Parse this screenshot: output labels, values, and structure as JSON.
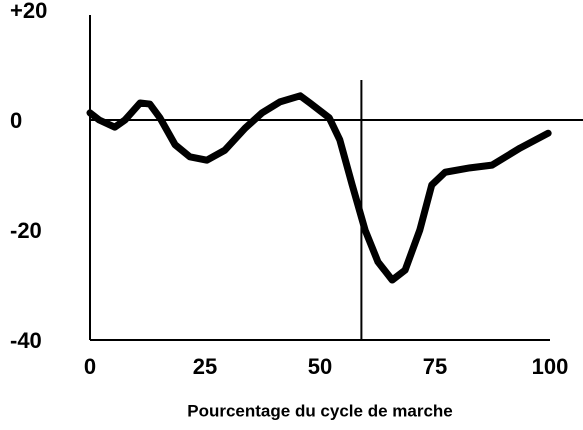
{
  "chart_data": {
    "type": "line",
    "xlabel": "Pourcentage du cycle de marche",
    "xlim": [
      0,
      100
    ],
    "xticks": [
      0,
      25,
      50,
      75,
      100
    ],
    "ylim": [
      -40,
      20
    ],
    "yticks": [
      {
        "value": 20,
        "label": "+20"
      },
      0,
      -20,
      -40
    ],
    "vline_x": 59,
    "hline_y": 0,
    "series": [
      {
        "color": "#000000",
        "x": [
          0,
          2,
          5.4,
          7.6,
          10.9,
          13,
          15.2,
          18.5,
          21.7,
          25.4,
          29.3,
          33.7,
          37.4,
          41.3,
          45.7,
          47.8,
          52,
          54.3,
          57,
          59.8,
          62.6,
          65.7,
          68.5,
          71.7,
          74.3,
          77.2,
          82.6,
          87.4,
          93.5,
          99.6
        ],
        "values": [
          1.3,
          0,
          -1.3,
          0,
          3.1,
          2.9,
          0.4,
          -4.5,
          -6.7,
          -7.3,
          -5.5,
          -1.5,
          1.3,
          3.3,
          4.4,
          3.1,
          0.4,
          -3.6,
          -11.8,
          -20,
          -25.8,
          -29.1,
          -27.3,
          -20,
          -11.8,
          -9.5,
          -8.7,
          -8.2,
          -5.1,
          -2.4
        ]
      }
    ]
  }
}
